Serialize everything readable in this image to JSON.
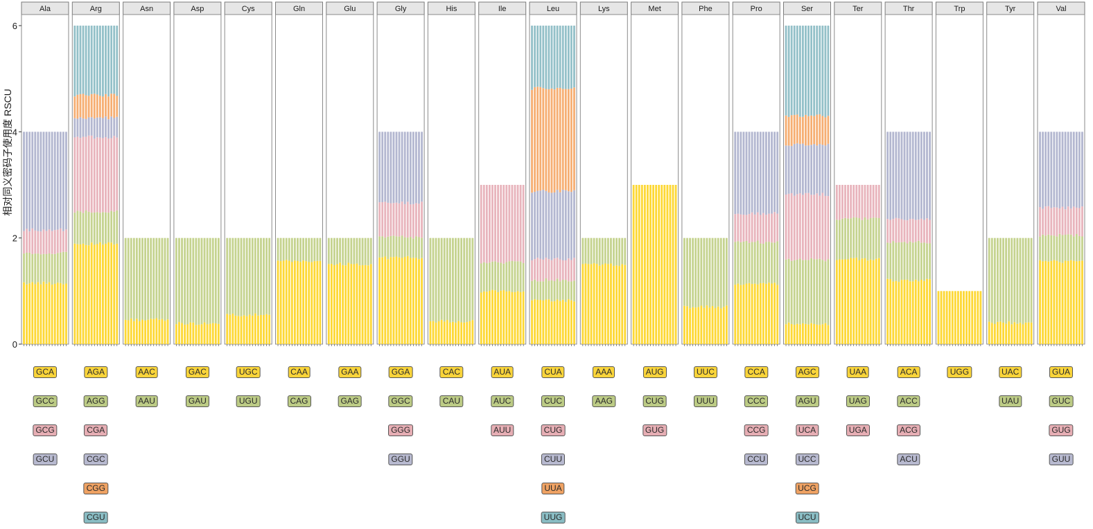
{
  "chart_data": {
    "type": "bar",
    "stacked": true,
    "title": "",
    "xlabel": "",
    "ylabel": "相对同义密码子使用度 RSCU",
    "ylim": [
      0,
      6.4
    ],
    "yticks": [
      0,
      2,
      4,
      6
    ],
    "bars_per_panel": 16,
    "colors": [
      "#FDD835",
      "#C5D38F",
      "#E8B4BC",
      "#B3B7D0",
      "#F6AE72",
      "#93C0C8"
    ],
    "tag_colors": [
      "#F9D43A",
      "#BCCB85",
      "#E6AEB4",
      "#B7B9CF",
      "#EFA263",
      "#89BCC3"
    ],
    "panels": [
      {
        "aa": "Ala",
        "codons": [
          "GCA",
          "GCC",
          "GCG",
          "GCU"
        ],
        "values": [
          1.15,
          0.57,
          0.43,
          1.85
        ]
      },
      {
        "aa": "Arg",
        "codons": [
          "AGA",
          "AGG",
          "CGA",
          "CGC",
          "CGG",
          "CGU"
        ],
        "values": [
          1.89,
          0.61,
          1.4,
          0.36,
          0.43,
          1.31
        ]
      },
      {
        "aa": "Asn",
        "codons": [
          "AAC",
          "AAU"
        ],
        "values": [
          0.46,
          1.54
        ]
      },
      {
        "aa": "Asp",
        "codons": [
          "GAC",
          "GAU"
        ],
        "values": [
          0.39,
          1.61
        ]
      },
      {
        "aa": "Cys",
        "codons": [
          "UGC",
          "UGU"
        ],
        "values": [
          0.55,
          1.45
        ]
      },
      {
        "aa": "Gln",
        "codons": [
          "CAA",
          "CAG"
        ],
        "values": [
          1.56,
          0.44
        ]
      },
      {
        "aa": "Glu",
        "codons": [
          "GAA",
          "GAG"
        ],
        "values": [
          1.51,
          0.49
        ]
      },
      {
        "aa": "Gly",
        "codons": [
          "GGA",
          "GGC",
          "GGG",
          "GGU"
        ],
        "values": [
          1.63,
          0.39,
          0.64,
          1.34
        ]
      },
      {
        "aa": "His",
        "codons": [
          "CAC",
          "CAU"
        ],
        "values": [
          0.43,
          1.57
        ]
      },
      {
        "aa": "Ile",
        "codons": [
          "AUA",
          "AUC",
          "AUU"
        ],
        "values": [
          1.0,
          0.54,
          1.46
        ]
      },
      {
        "aa": "Leu",
        "codons": [
          "CUA",
          "CUC",
          "CUG",
          "CUU",
          "UUA",
          "UUG"
        ],
        "values": [
          0.82,
          0.39,
          0.39,
          1.28,
          1.94,
          1.18
        ]
      },
      {
        "aa": "Lys",
        "codons": [
          "AAA",
          "AAG"
        ],
        "values": [
          1.5,
          0.5
        ]
      },
      {
        "aa": "Met",
        "codons": [
          "AUG",
          "CUG",
          "GUG"
        ],
        "values": [
          3.0,
          0,
          0
        ]
      },
      {
        "aa": "Phe",
        "codons": [
          "UUC",
          "UUU"
        ],
        "values": [
          0.7,
          1.3
        ]
      },
      {
        "aa": "Pro",
        "codons": [
          "CCA",
          "CCC",
          "CCG",
          "CCU"
        ],
        "values": [
          1.13,
          0.79,
          0.54,
          1.54
        ]
      },
      {
        "aa": "Ser",
        "codons": [
          "AGC",
          "AGU",
          "UCA",
          "UCC",
          "UCG",
          "UCU"
        ],
        "values": [
          0.38,
          1.21,
          1.23,
          0.94,
          0.54,
          1.7
        ]
      },
      {
        "aa": "Ter",
        "codons": [
          "UAA",
          "UAG",
          "UGA"
        ],
        "values": [
          1.6,
          0.76,
          0.64
        ]
      },
      {
        "aa": "Thr",
        "codons": [
          "ACA",
          "ACC",
          "ACG",
          "ACU"
        ],
        "values": [
          1.2,
          0.72,
          0.43,
          1.65
        ]
      },
      {
        "aa": "Trp",
        "codons": [
          "UGG"
        ],
        "values": [
          1.0
        ]
      },
      {
        "aa": "Tyr",
        "codons": [
          "UAC",
          "UAU"
        ],
        "values": [
          0.4,
          1.6
        ]
      },
      {
        "aa": "Val",
        "codons": [
          "GUA",
          "GUC",
          "GUG",
          "GUU"
        ],
        "values": [
          1.56,
          0.49,
          0.52,
          1.43
        ]
      }
    ],
    "legend": "below-each-panel",
    "grid": false
  }
}
